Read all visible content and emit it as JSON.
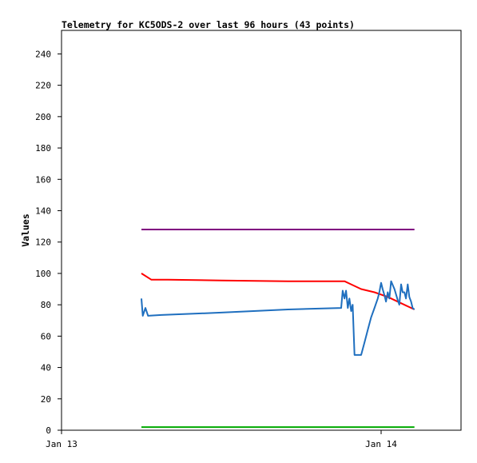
{
  "chart_data": {
    "type": "line",
    "title": "Telemetry for KC5ODS-2 over last 96 hours (43 points)",
    "xlabel": "",
    "ylabel": "Values",
    "ylim": [
      0,
      255
    ],
    "yticks": [
      0,
      20,
      40,
      60,
      80,
      100,
      120,
      140,
      160,
      180,
      200,
      220,
      240
    ],
    "xlim": [
      "Jan 13 00:00",
      "Jan 14 06:00"
    ],
    "xticks": [
      {
        "x": "Jan 13 00:00",
        "label": "Jan 13"
      },
      {
        "x": "Jan 14 00:00",
        "label": "Jan 14"
      }
    ],
    "grid": false,
    "legend": "none",
    "colors": {
      "purple_series": "#800080",
      "red_series": "#ff0000",
      "blue_series": "#1f6fbf",
      "green_series": "#00aa00"
    },
    "series": [
      {
        "color": "#800080",
        "x": [
          "Jan 13 06:00",
          "Jan 14 02:30"
        ],
        "y": [
          128,
          128
        ]
      },
      {
        "color": "#ff0000",
        "x": [
          "Jan 13 06:00",
          "Jan 13 06:45",
          "Jan 13 08:00",
          "Jan 13 12:00",
          "Jan 13 17:00",
          "Jan 13 21:15",
          "Jan 13 21:45",
          "Jan 13 22:30",
          "Jan 13 23:30",
          "Jan 14 00:30",
          "Jan 14 01:30",
          "Jan 14 02:30"
        ],
        "y": [
          100,
          96,
          96,
          95.5,
          95,
          95,
          93,
          90,
          88,
          85,
          81,
          77
        ]
      },
      {
        "color": "#1f6fbf",
        "x": [
          "Jan 13 06:00",
          "Jan 13 06:06",
          "Jan 13 06:18",
          "Jan 13 06:30",
          "Jan 13 07:30",
          "Jan 13 12:00",
          "Jan 13 17:00",
          "Jan 13 21:00",
          "Jan 13 21:07",
          "Jan 13 21:15",
          "Jan 13 21:22",
          "Jan 13 21:30",
          "Jan 13 21:37",
          "Jan 13 21:45",
          "Jan 13 21:52",
          "Jan 13 22:00",
          "Jan 13 22:30",
          "Jan 13 22:45",
          "Jan 13 23:00",
          "Jan 13 23:15",
          "Jan 13 23:30",
          "Jan 13 23:45",
          "Jan 13 23:52",
          "Jan 13 23:57",
          "Jan 14 00:00",
          "Jan 14 00:07",
          "Jan 14 00:15",
          "Jan 14 00:22",
          "Jan 14 00:30",
          "Jan 14 00:37",
          "Jan 14 00:45",
          "Jan 14 01:00",
          "Jan 14 01:15",
          "Jan 14 01:22",
          "Jan 14 01:30",
          "Jan 14 01:37",
          "Jan 14 01:45",
          "Jan 14 01:52",
          "Jan 14 02:00",
          "Jan 14 02:07",
          "Jan 14 02:15",
          "Jan 14 02:22",
          "Jan 14 02:30"
        ],
        "y": [
          84,
          73,
          78,
          73,
          73.5,
          75,
          77,
          78,
          89,
          84,
          89,
          78,
          84,
          76,
          80,
          48,
          48,
          56,
          64,
          72,
          78,
          84,
          88,
          92,
          94,
          90,
          86,
          82,
          88,
          84,
          95,
          90,
          83,
          80,
          93,
          88,
          88,
          84,
          93,
          85,
          82,
          78,
          77
        ]
      },
      {
        "color": "#00aa00",
        "x": [
          "Jan 13 06:00",
          "Jan 14 02:30"
        ],
        "y": [
          2,
          2
        ]
      }
    ]
  }
}
